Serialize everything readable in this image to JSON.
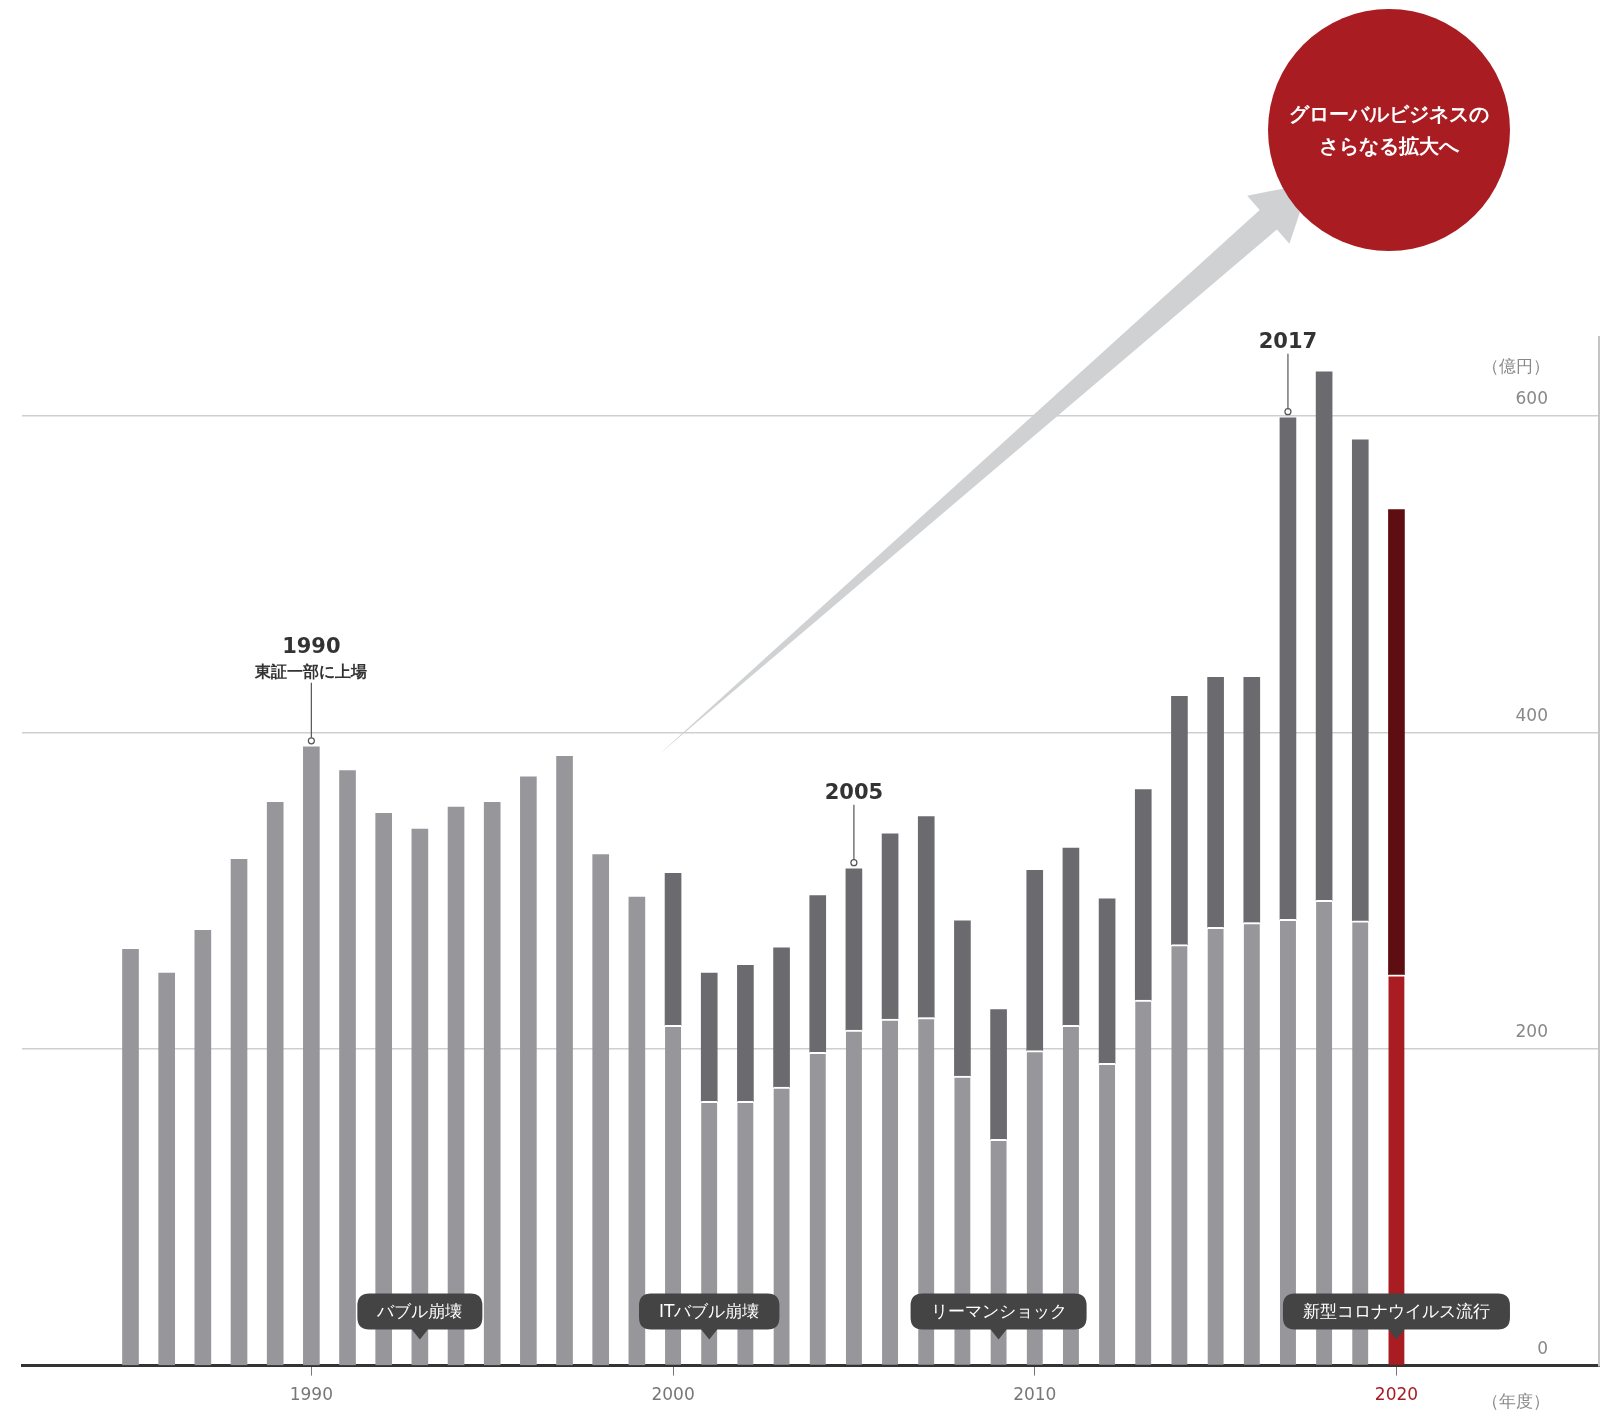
{
  "chart_data": {
    "type": "bar",
    "stacked": true,
    "xlabel": "（年度）",
    "ylabel": "（億円）",
    "x": [
      1985,
      1986,
      1987,
      1988,
      1989,
      1990,
      1991,
      1992,
      1993,
      1994,
      1995,
      1996,
      1997,
      1998,
      1999,
      2000,
      2001,
      2002,
      2003,
      2004,
      2005,
      2006,
      2007,
      2008,
      2009,
      2010,
      2011,
      2012,
      2013,
      2014,
      2015,
      2016,
      2017,
      2018,
      2019,
      2020
    ],
    "xlim": [
      1982,
      2025.6
    ],
    "xticks": [
      1990,
      2000,
      2010,
      2020
    ],
    "ylim": [
      0,
      650
    ],
    "yticks": [
      0,
      200,
      400,
      600
    ],
    "grid": "y",
    "legend": false,
    "series": [
      {
        "values": [
          263,
          248,
          275,
          320,
          356,
          391,
          376,
          349,
          339,
          353,
          356,
          372,
          385,
          323,
          296,
          215,
          167,
          167,
          176,
          198,
          212,
          219,
          220,
          183,
          143,
          199,
          215,
          191,
          231,
          266,
          277,
          280,
          282,
          294,
          281,
          247
        ],
        "colors": [
          "#97979b",
          "#97979b",
          "#97979b",
          "#97979b",
          "#97979b",
          "#97979b",
          "#97979b",
          "#97979b",
          "#97979b",
          "#97979b",
          "#97979b",
          "#97979b",
          "#97979b",
          "#97979b",
          "#97979b",
          "#97979b",
          "#97979b",
          "#97979b",
          "#97979b",
          "#97979b",
          "#97979b",
          "#97979b",
          "#97979b",
          "#97979b",
          "#97979b",
          "#97979b",
          "#97979b",
          "#97979b",
          "#97979b",
          "#97979b",
          "#97979b",
          "#97979b",
          "#97979b",
          "#97979b",
          "#97979b",
          "#a81c22"
        ]
      },
      {
        "values": [
          null,
          null,
          null,
          null,
          null,
          null,
          null,
          null,
          null,
          null,
          null,
          null,
          null,
          null,
          null,
          96,
          81,
          86,
          88,
          99,
          102,
          117,
          127,
          98,
          82,
          114,
          112,
          104,
          133,
          157,
          158,
          155,
          317,
          334,
          304,
          294
        ],
        "colors": [
          "#6b6b6f",
          "#6b6b6f",
          "#6b6b6f",
          "#6b6b6f",
          "#6b6b6f",
          "#6b6b6f",
          "#6b6b6f",
          "#6b6b6f",
          "#6b6b6f",
          "#6b6b6f",
          "#6b6b6f",
          "#6b6b6f",
          "#6b6b6f",
          "#6b6b6f",
          "#6b6b6f",
          "#6b6b6f",
          "#6b6b6f",
          "#6b6b6f",
          "#6b6b6f",
          "#6b6b6f",
          "#6b6b6f",
          "#6b6b6f",
          "#6b6b6f",
          "#6b6b6f",
          "#6b6b6f",
          "#6b6b6f",
          "#6b6b6f",
          "#6b6b6f",
          "#6b6b6f",
          "#6b6b6f",
          "#6b6b6f",
          "#6b6b6f",
          "#6b6b6f",
          "#6b6b6f",
          "#6b6b6f",
          "#5e0d10"
        ]
      }
    ],
    "annotations": [
      {
        "text": "1990",
        "x": 1990,
        "y": 391
      },
      "東証一部に上場",
      {
        "text": "2005",
        "x": 2005,
        "y": 314
      },
      {
        "text": "2017",
        "x": 2017,
        "y": 599
      },
      "バブル崩壊",
      "ITバブル崩壊",
      "リーマンショック",
      "新型コロナウイルス流行",
      "グローバルビジネスのさらなる拡大へ"
    ]
  }
}
